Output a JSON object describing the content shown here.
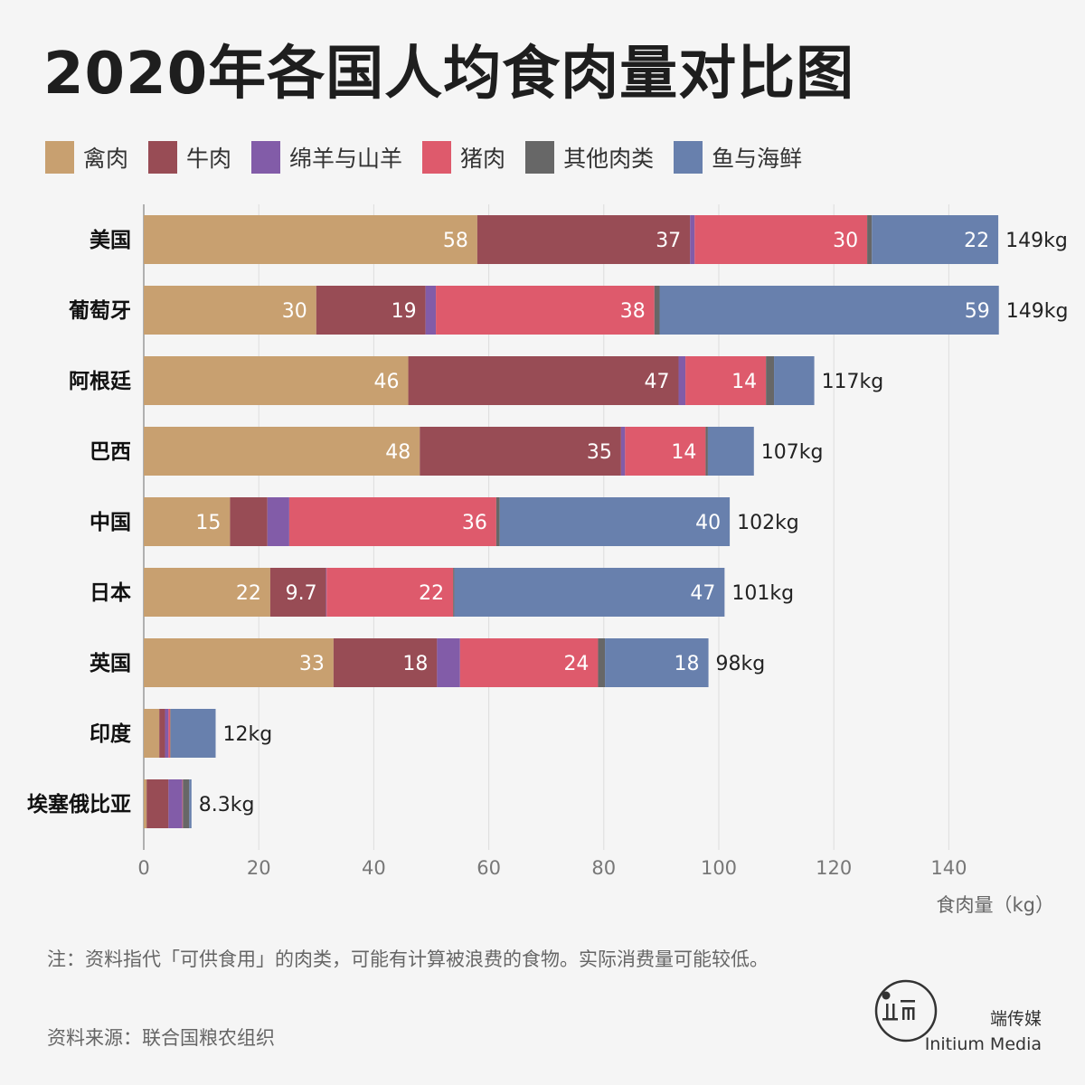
{
  "title": "2020年各国人均食肉量对比图",
  "legend": [
    {
      "label": "禽肉",
      "color": "#c8a070"
    },
    {
      "label": "牛肉",
      "color": "#984c55"
    },
    {
      "label": "绵羊与山羊",
      "color": "#825ca8"
    },
    {
      "label": "猪肉",
      "color": "#de5a6c"
    },
    {
      "label": "其他肉类",
      "color": "#676767"
    },
    {
      "label": "鱼与海鲜",
      "color": "#6880ad"
    }
  ],
  "chart_data": {
    "type": "bar",
    "orientation": "horizontal",
    "stacked": true,
    "categories": [
      "美国",
      "葡萄牙",
      "阿根廷",
      "巴西",
      "中国",
      "日本",
      "英国",
      "印度",
      "埃塞俄比亚"
    ],
    "series": [
      {
        "name": "禽肉",
        "values": [
          58,
          30,
          46,
          48,
          15,
          22,
          33,
          2.7,
          0.5
        ],
        "labels": [
          "58",
          "30",
          "46",
          "48",
          "15",
          "22",
          "33",
          "",
          ""
        ]
      },
      {
        "name": "牛肉",
        "values": [
          37,
          19,
          47,
          35,
          6.5,
          9.7,
          18,
          1.0,
          3.8
        ],
        "labels": [
          "37",
          "19",
          "47",
          "35",
          "",
          "9.7",
          "18",
          "",
          ""
        ]
      },
      {
        "name": "绵羊与山羊",
        "values": [
          0.8,
          1.8,
          1.2,
          0.7,
          3.8,
          0.1,
          4.0,
          0.6,
          2.4
        ],
        "labels": [
          "",
          "",
          "",
          "",
          "",
          "",
          "",
          "",
          ""
        ]
      },
      {
        "name": "猪肉",
        "values": [
          30,
          38,
          14,
          14,
          36,
          22,
          24,
          0.3,
          0.1
        ],
        "labels": [
          "30",
          "38",
          "14",
          "14",
          "36",
          "22",
          "24",
          "",
          ""
        ]
      },
      {
        "name": "其他肉类",
        "values": [
          0.8,
          0.9,
          1.4,
          0.4,
          0.6,
          0.2,
          1.2,
          0.1,
          1.1
        ],
        "labels": [
          "",
          "",
          "",
          "",
          "",
          "",
          "",
          "",
          ""
        ]
      },
      {
        "name": "鱼与海鲜",
        "values": [
          22,
          59,
          7,
          8,
          40,
          47,
          18,
          7.8,
          0.4
        ],
        "labels": [
          "22",
          "59",
          "",
          "",
          "40",
          "47",
          "18",
          "",
          ""
        ]
      }
    ],
    "totals": [
      "149kg",
      "149kg",
      "117kg",
      "107kg",
      "102kg",
      "101kg",
      "98kg",
      "12kg",
      "8.3kg"
    ],
    "xlim": [
      0,
      150
    ],
    "xticks": [
      0,
      20,
      40,
      60,
      80,
      100,
      120,
      140
    ],
    "xlabel": "食肉量（kg）",
    "grid": true,
    "legend_position": "top-left"
  },
  "note": "注：资料指代「可供食用」的肉类，可能有计算被浪费的食物。实际消费量可能较低。",
  "source": "资料来源：联合国粮农组织",
  "brand": {
    "cn": "端传媒",
    "en": "Initium Media"
  }
}
